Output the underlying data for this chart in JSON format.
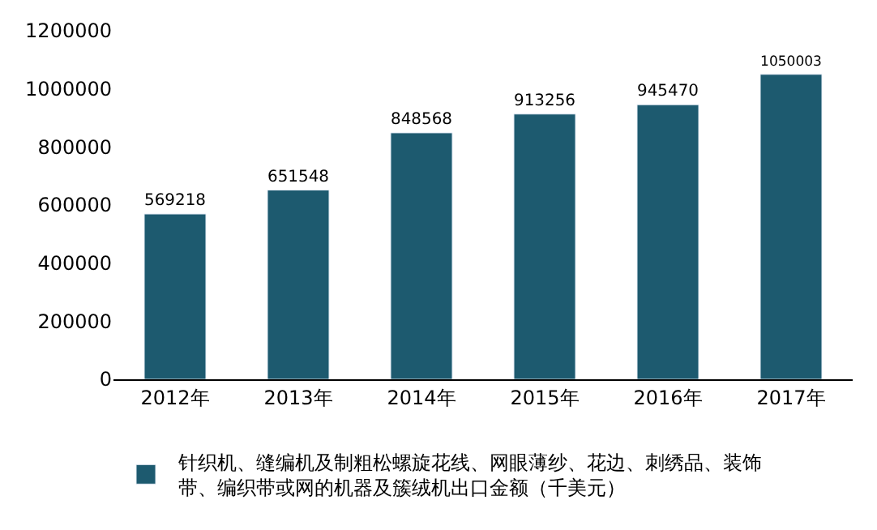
{
  "chart_data": {
    "type": "bar",
    "categories": [
      "2012年",
      "2013年",
      "2014年",
      "2015年",
      "2016年",
      "2017年"
    ],
    "series": [
      {
        "name": "针织机、缝编机及制粗松螺旋花线、网眼薄纱、花边、刺绣品、装饰带、编织带或网的机器及簇绒机出口金额（千美元）",
        "color": "#1d5a6f",
        "values": [
          569218,
          651548,
          848568,
          913256,
          945470,
          1050003
        ]
      }
    ],
    "ylim": [
      0,
      1200000
    ],
    "yticks": [
      0,
      200000,
      400000,
      600000,
      800000,
      1000000,
      1200000
    ],
    "grid": false,
    "legend": "bottom",
    "data_labels": true
  }
}
